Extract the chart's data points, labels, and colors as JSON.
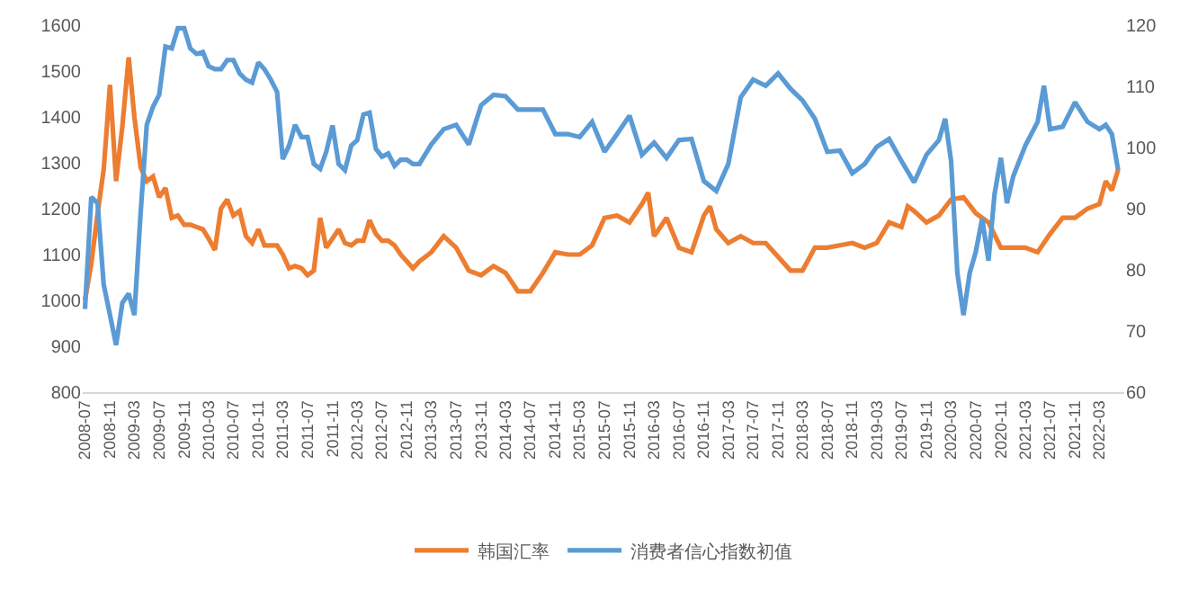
{
  "chart_data": {
    "type": "line",
    "legend": "bottom",
    "grid": false,
    "marker": "none",
    "line_style": "solid",
    "xlim": [
      "2008-06-20",
      "2022-07-01"
    ],
    "xticks": [
      "2008-07",
      "2008-11",
      "2009-03",
      "2009-07",
      "2009-11",
      "2010-03",
      "2010-07",
      "2010-11",
      "2011-03",
      "2011-07",
      "2011-11",
      "2012-03",
      "2012-07",
      "2012-11",
      "2013-03",
      "2013-07",
      "2013-11",
      "2014-03",
      "2014-07",
      "2014-11",
      "2015-03",
      "2015-07",
      "2015-11",
      "2016-03",
      "2016-07",
      "2016-11",
      "2017-03",
      "2017-07",
      "2017-11",
      "2018-03",
      "2018-07",
      "2018-11",
      "2019-03",
      "2019-07",
      "2019-11",
      "2020-03",
      "2020-07",
      "2020-11",
      "2021-03",
      "2021-07",
      "2021-11",
      "2022-03"
    ],
    "ylim": [
      800,
      1600
    ],
    "yticks": [
      800,
      900,
      1000,
      1100,
      1200,
      1300,
      1400,
      1500,
      1600
    ],
    "y2lim": [
      60,
      120
    ],
    "y2ticks": [
      60,
      70,
      80,
      90,
      100,
      110,
      120
    ],
    "series": [
      {
        "name": "韩国汇率",
        "color": "#ed7d31",
        "x": [
          "2008-07",
          "2008-08",
          "2008-09",
          "2008-10",
          "2008-11",
          "2008-12",
          "2009-01",
          "2009-02",
          "2009-03",
          "2009-04",
          "2009-05",
          "2009-06",
          "2009-07",
          "2009-08",
          "2009-09",
          "2009-10",
          "2009-11",
          "2009-12",
          "2010-01",
          "2010-02",
          "2010-03",
          "2010-04",
          "2010-05",
          "2010-06",
          "2010-07",
          "2010-08",
          "2010-09",
          "2010-10",
          "2010-11",
          "2010-12",
          "2011-01",
          "2011-02",
          "2011-03",
          "2011-04",
          "2011-05",
          "2011-06",
          "2011-07",
          "2011-08",
          "2011-09",
          "2011-10",
          "2011-11",
          "2011-12",
          "2012-01",
          "2012-02",
          "2012-03",
          "2012-04",
          "2012-05",
          "2012-06",
          "2012-07",
          "2012-08",
          "2012-09",
          "2012-10",
          "2012-11",
          "2012-12",
          "2013-01",
          "2013-03",
          "2013-05",
          "2013-07",
          "2013-09",
          "2013-11",
          "2014-01",
          "2014-03",
          "2014-05",
          "2014-07",
          "2014-09",
          "2014-11",
          "2015-01",
          "2015-03",
          "2015-05",
          "2015-07",
          "2015-09",
          "2015-11",
          "2016-01",
          "2016-02",
          "2016-03",
          "2016-05",
          "2016-07",
          "2016-09",
          "2016-11",
          "2016-12",
          "2017-01",
          "2017-03",
          "2017-05",
          "2017-07",
          "2017-09",
          "2017-11",
          "2018-01",
          "2018-03",
          "2018-05",
          "2018-07",
          "2018-09",
          "2018-11",
          "2019-01",
          "2019-03",
          "2019-05",
          "2019-07",
          "2019-08",
          "2019-09",
          "2019-11",
          "2020-01",
          "2020-03",
          "2020-05",
          "2020-07",
          "2020-09",
          "2020-11",
          "2021-01",
          "2021-03",
          "2021-05",
          "2021-07",
          "2021-09",
          "2021-11",
          "2022-01",
          "2022-03",
          "2022-04",
          "2022-05",
          "2022-06"
        ],
        "values": [
          1000,
          1080,
          1190,
          1285,
          1470,
          1260,
          1380,
          1530,
          1400,
          1290,
          1260,
          1270,
          1225,
          1245,
          1180,
          1185,
          1165,
          1165,
          1160,
          1155,
          1135,
          1110,
          1200,
          1220,
          1185,
          1195,
          1140,
          1125,
          1155,
          1120,
          1120,
          1120,
          1100,
          1070,
          1075,
          1070,
          1055,
          1065,
          1180,
          1115,
          1135,
          1155,
          1125,
          1120,
          1130,
          1130,
          1175,
          1145,
          1130,
          1130,
          1120,
          1100,
          1085,
          1070,
          1085,
          1105,
          1140,
          1115,
          1065,
          1055,
          1075,
          1060,
          1020,
          1020,
          1060,
          1105,
          1100,
          1100,
          1120,
          1180,
          1185,
          1170,
          1210,
          1235,
          1140,
          1180,
          1115,
          1105,
          1185,
          1205,
          1155,
          1125,
          1140,
          1125,
          1125,
          1095,
          1065,
          1065,
          1115,
          1115,
          1120,
          1125,
          1115,
          1125,
          1170,
          1160,
          1205,
          1195,
          1170,
          1185,
          1220,
          1225,
          1190,
          1170,
          1115,
          1115,
          1115,
          1105,
          1145,
          1180,
          1180,
          1200,
          1210,
          1260,
          1240,
          1285
        ]
      },
      {
        "name": "消费者信心指数初值",
        "color": "#5b9bd5",
        "axis": "y2",
        "x": [
          "2008-07",
          "2008-08",
          "2008-09",
          "2008-10",
          "2008-11",
          "2008-12",
          "2009-01",
          "2009-02",
          "2009-03",
          "2009-04",
          "2009-05",
          "2009-06",
          "2009-07",
          "2009-08",
          "2009-09",
          "2009-10",
          "2009-11",
          "2009-12",
          "2010-01",
          "2010-02",
          "2010-03",
          "2010-04",
          "2010-05",
          "2010-06",
          "2010-07",
          "2010-08",
          "2010-09",
          "2010-10",
          "2010-11",
          "2010-12",
          "2011-01",
          "2011-02",
          "2011-03",
          "2011-04",
          "2011-05",
          "2011-06",
          "2011-07",
          "2011-08",
          "2011-09",
          "2011-10",
          "2011-11",
          "2011-12",
          "2012-01",
          "2012-02",
          "2012-03",
          "2012-04",
          "2012-05",
          "2012-06",
          "2012-07",
          "2012-08",
          "2012-09",
          "2012-10",
          "2012-11",
          "2012-12",
          "2013-01",
          "2013-03",
          "2013-05",
          "2013-07",
          "2013-09",
          "2013-11",
          "2014-01",
          "2014-03",
          "2014-05",
          "2014-07",
          "2014-09",
          "2014-11",
          "2015-01",
          "2015-03",
          "2015-05",
          "2015-07",
          "2015-09",
          "2015-11",
          "2016-01",
          "2016-03",
          "2016-05",
          "2016-07",
          "2016-09",
          "2016-11",
          "2017-01",
          "2017-03",
          "2017-05",
          "2017-07",
          "2017-09",
          "2017-11",
          "2018-01",
          "2018-03",
          "2018-05",
          "2018-07",
          "2018-09",
          "2018-11",
          "2019-01",
          "2019-03",
          "2019-05",
          "2019-07",
          "2019-09",
          "2019-11",
          "2020-01",
          "2020-02",
          "2020-03",
          "2020-04",
          "2020-05",
          "2020-06",
          "2020-07",
          "2020-08",
          "2020-09",
          "2020-10",
          "2020-11",
          "2020-12",
          "2021-01",
          "2021-03",
          "2021-05",
          "2021-06",
          "2021-07",
          "2021-09",
          "2021-11",
          "2022-01",
          "2022-03",
          "2022-04",
          "2022-05",
          "2022-06"
        ],
        "values": [
          73.6,
          91.9,
          90.9,
          77.6,
          72.6,
          67.7,
          74.6,
          76.1,
          72.6,
          89.4,
          103.7,
          106.7,
          108.6,
          116.5,
          116.2,
          119.5,
          119.5,
          116.2,
          115.3,
          115.6,
          113.3,
          112.8,
          112.8,
          114.3,
          114.3,
          112.1,
          111.1,
          110.6,
          113.9,
          112.8,
          111.1,
          109.1,
          98.1,
          100.3,
          103.7,
          101.7,
          101.7,
          97.3,
          96.5,
          99.3,
          103.6,
          97.3,
          96.3,
          100.3,
          101.2,
          105.4,
          105.7,
          99.8,
          98.5,
          99.0,
          97.0,
          98.0,
          98.0,
          97.3,
          97.3,
          100.5,
          103.0,
          103.7,
          100.5,
          106.9,
          108.6,
          108.4,
          106.2,
          106.2,
          106.2,
          102.2,
          102.2,
          101.7,
          104.2,
          99.3,
          102.2,
          105.2,
          98.8,
          100.8,
          98.3,
          101.2,
          101.4,
          94.5,
          92.9,
          97.3,
          108.2,
          111.1,
          110.1,
          112.1,
          109.6,
          107.7,
          104.7,
          99.3,
          99.5,
          95.8,
          97.3,
          100.1,
          101.4,
          97.8,
          94.3,
          98.8,
          101.2,
          104.7,
          97.8,
          79.5,
          72.6,
          79.5,
          83.0,
          88.4,
          81.5,
          92.4,
          98.3,
          90.9,
          95.3,
          100.3,
          104.2,
          110.1,
          103.0,
          103.4,
          107.4,
          104.2,
          103.0,
          103.7,
          102.2,
          96.3
        ]
      }
    ]
  }
}
